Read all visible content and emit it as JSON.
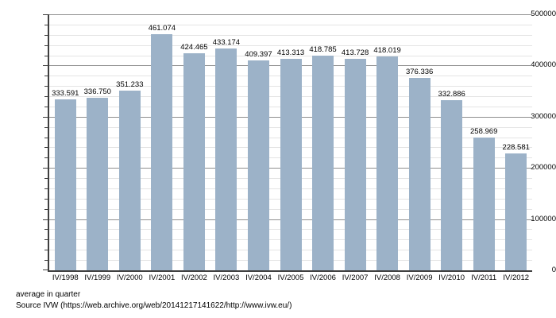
{
  "chart_data": {
    "type": "bar",
    "title": "",
    "xlabel": "",
    "ylabel": "",
    "categories": [
      "IV/1998",
      "IV/1999",
      "IV/2000",
      "IV/2001",
      "IV/2002",
      "IV/2003",
      "IV/2004",
      "IV/2005",
      "IV/2006",
      "IV/2007",
      "IV/2008",
      "IV/2009",
      "IV/2010",
      "IV/2011",
      "IV/2012"
    ],
    "values": [
      333591,
      336750,
      351233,
      461074,
      424465,
      433174,
      409397,
      413313,
      418785,
      413728,
      418019,
      376336,
      332886,
      258969,
      228581
    ],
    "value_labels": [
      "333.591",
      "336.750",
      "351.233",
      "461.074",
      "424.465",
      "433.174",
      "409.397",
      "413.313",
      "418.785",
      "413.728",
      "418.019",
      "376.336",
      "332.886",
      "258.969",
      "228.581"
    ],
    "ylim": [
      0,
      500000
    ],
    "y_major_step": 100000,
    "y_minor_step": 20000,
    "y_tick_labels": [
      "0",
      "100000",
      "200000",
      "300000",
      "400000",
      "500000"
    ],
    "grid": true,
    "legend": "none",
    "bar_color": "#9CB2C8"
  },
  "caption": {
    "line1": "average in quarter",
    "line2": "Source IVW (https://web.archive.org/web/20141217141622/http://www.ivw.eu/)"
  },
  "colors": {
    "bar": "#9CB2C8",
    "major_grid": "#8F8F8F",
    "minor_grid": "#E4E4E4",
    "axis": "#3F3F3F",
    "text": "#000000"
  }
}
